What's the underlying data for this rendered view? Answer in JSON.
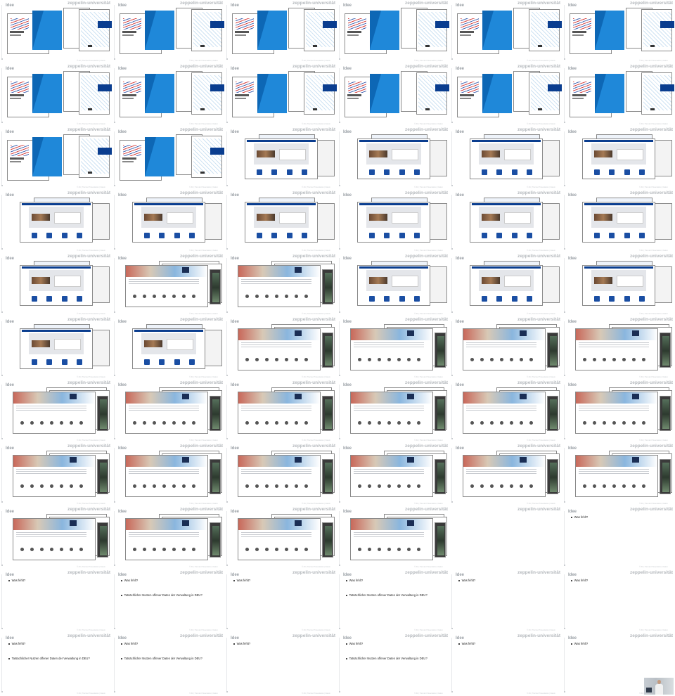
{
  "slide_title": "Idee",
  "brand": "zeppelin-universität",
  "footer": "© ZU | Titel der Präsentation | Datum",
  "rows": [
    [
      "A",
      "A",
      "A",
      "A",
      "A",
      "A"
    ],
    [
      "A",
      "A",
      "A",
      "A",
      "A",
      "A"
    ],
    [
      "A",
      "A",
      "B",
      "B",
      "B",
      "B"
    ],
    [
      "B",
      "B",
      "B",
      "B",
      "B",
      "B"
    ],
    [
      "B",
      "C",
      "C",
      "B",
      "B",
      "B"
    ],
    [
      "B",
      "B",
      "C",
      "C",
      "C",
      "C"
    ],
    [
      "C",
      "C",
      "C",
      "C",
      "C",
      "C"
    ],
    [
      "C",
      "C",
      "C",
      "C",
      "C",
      "C"
    ],
    [
      "C",
      "C",
      "C",
      "C",
      "blank",
      "D1"
    ],
    [
      "D1",
      "D2",
      "D1",
      "D2",
      "D1",
      "D1"
    ],
    [
      "D2",
      "D2",
      "D1",
      "D2",
      "D1",
      "D1"
    ]
  ],
  "bullets": {
    "first": "Was fehlt?",
    "second": "Tatsächlicher Nutzen offener Daten der Verwaltung in DEU?"
  },
  "colors": {
    "accent_blue": "#1f88d9",
    "navy": "#0a3d8f"
  }
}
